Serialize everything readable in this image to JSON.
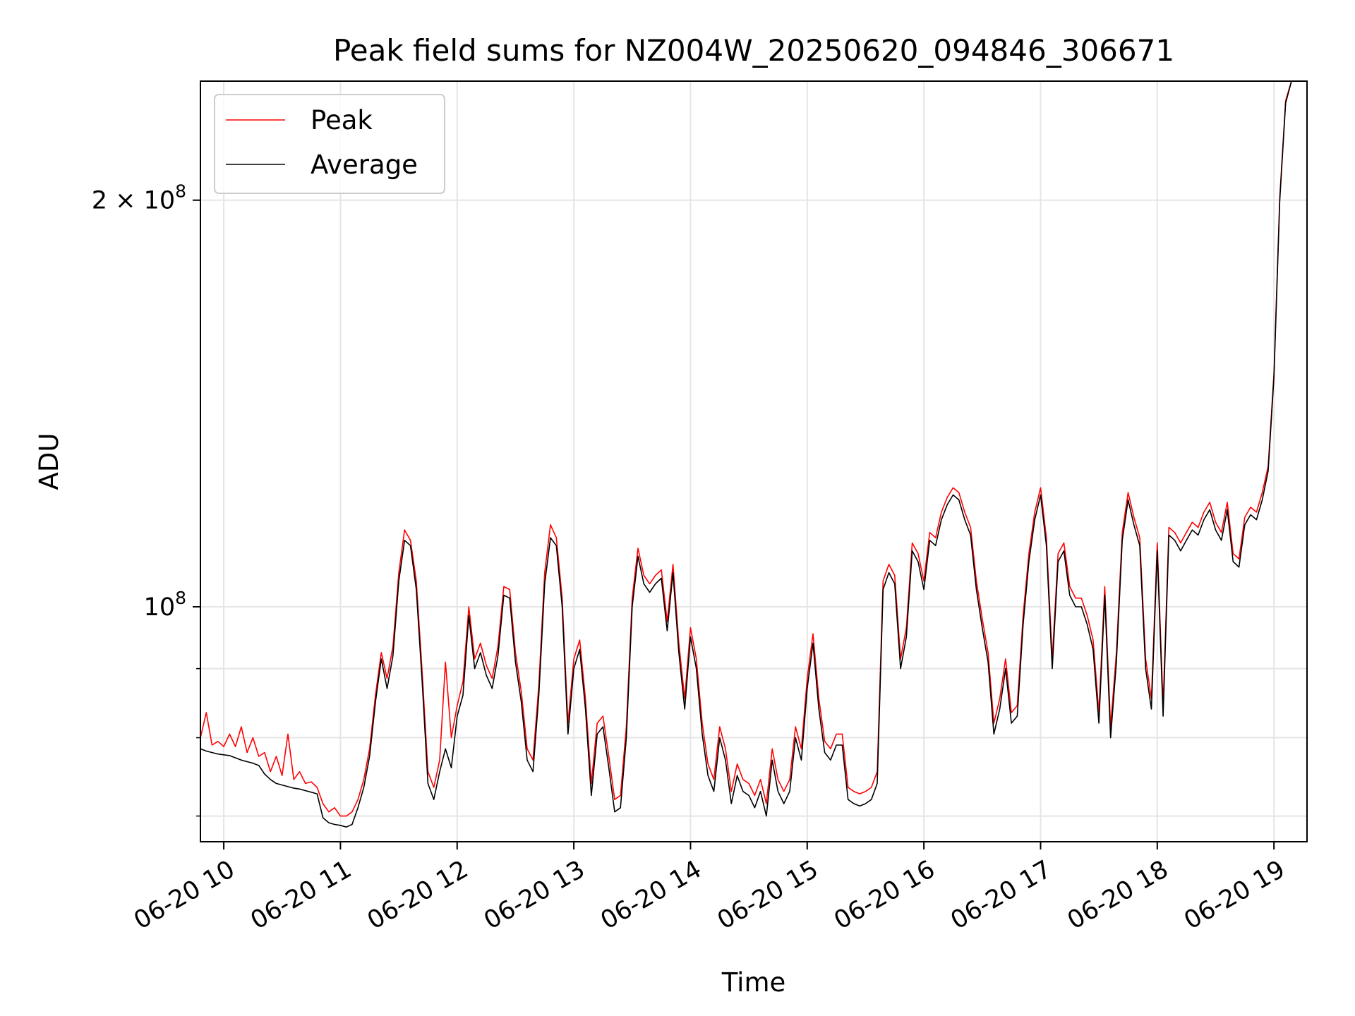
{
  "chart_data": {
    "type": "line",
    "title": "Peak field sums for NZ004W_20250620_094846_306671",
    "xlabel": "Time",
    "ylabel": "ADU",
    "yscale": "log",
    "x_unit": "hours on 2025-06-20",
    "xlim": [
      "2025-06-20 09:48",
      "2025-06-20 19:17"
    ],
    "ylim": [
      67000000,
      245000000
    ],
    "xticks": [
      {
        "value": "2025-06-20 10:00",
        "label": "06-20 10"
      },
      {
        "value": "2025-06-20 11:00",
        "label": "06-20 11"
      },
      {
        "value": "2025-06-20 12:00",
        "label": "06-20 12"
      },
      {
        "value": "2025-06-20 13:00",
        "label": "06-20 13"
      },
      {
        "value": "2025-06-20 14:00",
        "label": "06-20 14"
      },
      {
        "value": "2025-06-20 15:00",
        "label": "06-20 15"
      },
      {
        "value": "2025-06-20 16:00",
        "label": "06-20 16"
      },
      {
        "value": "2025-06-20 17:00",
        "label": "06-20 17"
      },
      {
        "value": "2025-06-20 18:00",
        "label": "06-20 18"
      },
      {
        "value": "2025-06-20 19:00",
        "label": "06-20 19"
      }
    ],
    "yticks_major": [
      {
        "value": 100000000,
        "base": "10",
        "exp": "8",
        "mantissa": ""
      },
      {
        "value": 200000000,
        "base": "10",
        "exp": "8",
        "mantissa": "2"
      }
    ],
    "yticks_minor": [
      70000000,
      80000000,
      90000000,
      300000000
    ],
    "grid": true,
    "legend": {
      "position": "top-left",
      "entries": [
        "Peak",
        "Average"
      ]
    },
    "colors": {
      "Peak": "#ff0000",
      "Average": "#000000",
      "grid": "#e5e5e5"
    },
    "series": [
      {
        "name": "Average",
        "x": [
          9.8,
          9.85,
          9.9,
          9.95,
          10.0,
          10.05,
          10.1,
          10.15,
          10.2,
          10.25,
          10.3,
          10.35,
          10.4,
          10.45,
          10.5,
          10.55,
          10.6,
          10.65,
          10.7,
          10.75,
          10.8,
          10.85,
          10.9,
          10.95,
          11.0,
          11.05,
          11.1,
          11.15,
          11.2,
          11.25,
          11.3,
          11.35,
          11.4,
          11.45,
          11.5,
          11.55,
          11.6,
          11.65,
          11.7,
          11.75,
          11.8,
          11.85,
          11.9,
          11.95,
          12.0,
          12.05,
          12.1,
          12.15,
          12.2,
          12.25,
          12.3,
          12.35,
          12.4,
          12.45,
          12.5,
          12.55,
          12.6,
          12.65,
          12.7,
          12.75,
          12.8,
          12.85,
          12.9,
          12.95,
          13.0,
          13.05,
          13.1,
          13.15,
          13.2,
          13.25,
          13.3,
          13.35,
          13.4,
          13.45,
          13.5,
          13.55,
          13.6,
          13.65,
          13.7,
          13.75,
          13.8,
          13.85,
          13.9,
          13.95,
          14.0,
          14.05,
          14.1,
          14.15,
          14.2,
          14.25,
          14.3,
          14.35,
          14.4,
          14.45,
          14.5,
          14.55,
          14.6,
          14.65,
          14.7,
          14.75,
          14.8,
          14.85,
          14.9,
          14.95,
          15.0,
          15.05,
          15.1,
          15.15,
          15.2,
          15.25,
          15.3,
          15.35,
          15.4,
          15.45,
          15.5,
          15.55,
          15.6,
          15.65,
          15.7,
          15.75,
          15.8,
          15.85,
          15.9,
          15.95,
          16.0,
          16.05,
          16.1,
          16.15,
          16.2,
          16.25,
          16.3,
          16.35,
          16.4,
          16.45,
          16.5,
          16.55,
          16.6,
          16.65,
          16.7,
          16.75,
          16.8,
          16.85,
          16.9,
          16.95,
          17.0,
          17.05,
          17.1,
          17.15,
          17.2,
          17.25,
          17.3,
          17.35,
          17.4,
          17.45,
          17.5,
          17.55,
          17.6,
          17.65,
          17.7,
          17.75,
          17.8,
          17.85,
          17.9,
          17.95,
          18.0,
          18.05,
          18.1,
          18.15,
          18.2,
          18.25,
          18.3,
          18.35,
          18.4,
          18.45,
          18.5,
          18.55,
          18.6,
          18.65,
          18.7,
          18.75,
          18.8,
          18.85,
          18.9,
          18.95,
          19.0,
          19.05,
          19.1,
          19.15,
          19.2,
          19.25
        ],
        "values": [
          78.5,
          78.2,
          78.0,
          77.8,
          77.7,
          77.6,
          77.3,
          77.0,
          76.8,
          76.6,
          76.3,
          75.2,
          74.5,
          74.0,
          73.8,
          73.6,
          73.4,
          73.3,
          73.1,
          72.9,
          72.7,
          69.8,
          69.2,
          69.0,
          68.9,
          68.7,
          69.0,
          71.0,
          73.5,
          77.5,
          85.0,
          91.5,
          87.0,
          92.0,
          104.5,
          112.0,
          111.0,
          103.0,
          88.0,
          74.0,
          72.0,
          75.5,
          78.5,
          76.0,
          83.0,
          86.0,
          98.5,
          90.0,
          92.5,
          89.0,
          87.0,
          92.0,
          102.0,
          101.5,
          91.0,
          85.0,
          77.0,
          75.5,
          86.0,
          104.0,
          112.5,
          111.0,
          100.0,
          80.5,
          90.0,
          93.0,
          84.0,
          72.5,
          80.5,
          81.5,
          76.0,
          70.5,
          71.0,
          80.0,
          100.0,
          109.0,
          104.0,
          102.5,
          104.0,
          105.0,
          96.0,
          106.0,
          92.5,
          84.0,
          95.0,
          90.0,
          80.5,
          75.0,
          73.0,
          80.0,
          77.0,
          71.5,
          75.0,
          73.0,
          72.5,
          71.0,
          73.0,
          70.0,
          77.0,
          73.0,
          71.5,
          73.0,
          80.0,
          77.0,
          87.0,
          94.0,
          84.0,
          78.0,
          77.0,
          79.0,
          79.0,
          72.0,
          71.5,
          71.2,
          71.5,
          72.0,
          74.0,
          103.0,
          106.0,
          104.0,
          90.0,
          95.0,
          110.0,
          108.0,
          103.0,
          112.0,
          111.0,
          116.0,
          119.0,
          121.0,
          120.0,
          116.0,
          113.0,
          103.0,
          96.5,
          91.0,
          80.5,
          84.0,
          90.0,
          82.0,
          83.0,
          97.0,
          108.0,
          116.0,
          121.0,
          111.0,
          90.0,
          108.0,
          110.0,
          102.0,
          100.0,
          100.0,
          97.0,
          93.0,
          82.0,
          102.0,
          80.0,
          91.0,
          112.0,
          120.0,
          115.0,
          111.0,
          90.0,
          84.0,
          110.0,
          83.0,
          113.0,
          112.0,
          110.0,
          112.0,
          114.0,
          113.0,
          116.0,
          118.0,
          114.0,
          112.0,
          118.0,
          108.0,
          107.0,
          115.0,
          117.0,
          116.0,
          120.0,
          126.0,
          148.0,
          200.0,
          236.0,
          246.0,
          248.0,
          250.0
        ]
      },
      {
        "name": "Peak",
        "x": [
          9.8,
          9.85,
          9.9,
          9.95,
          10.0,
          10.05,
          10.1,
          10.15,
          10.2,
          10.25,
          10.3,
          10.35,
          10.4,
          10.45,
          10.5,
          10.55,
          10.6,
          10.65,
          10.7,
          10.75,
          10.8,
          10.85,
          10.9,
          10.95,
          11.0,
          11.05,
          11.1,
          11.15,
          11.2,
          11.25,
          11.3,
          11.35,
          11.4,
          11.45,
          11.5,
          11.55,
          11.6,
          11.65,
          11.7,
          11.75,
          11.8,
          11.85,
          11.9,
          11.95,
          12.0,
          12.05,
          12.1,
          12.15,
          12.2,
          12.25,
          12.3,
          12.35,
          12.4,
          12.45,
          12.5,
          12.55,
          12.6,
          12.65,
          12.7,
          12.75,
          12.8,
          12.85,
          12.9,
          12.95,
          13.0,
          13.05,
          13.1,
          13.15,
          13.2,
          13.25,
          13.3,
          13.35,
          13.4,
          13.45,
          13.5,
          13.55,
          13.6,
          13.65,
          13.7,
          13.75,
          13.8,
          13.85,
          13.9,
          13.95,
          14.0,
          14.05,
          14.1,
          14.15,
          14.2,
          14.25,
          14.3,
          14.35,
          14.4,
          14.45,
          14.5,
          14.55,
          14.6,
          14.65,
          14.7,
          14.75,
          14.8,
          14.85,
          14.9,
          14.95,
          15.0,
          15.05,
          15.1,
          15.15,
          15.2,
          15.25,
          15.3,
          15.35,
          15.4,
          15.45,
          15.5,
          15.55,
          15.6,
          15.65,
          15.7,
          15.75,
          15.8,
          15.85,
          15.9,
          15.95,
          16.0,
          16.05,
          16.1,
          16.15,
          16.2,
          16.25,
          16.3,
          16.35,
          16.4,
          16.45,
          16.5,
          16.55,
          16.6,
          16.65,
          16.7,
          16.75,
          16.8,
          16.85,
          16.9,
          16.95,
          17.0,
          17.05,
          17.1,
          17.15,
          17.2,
          17.25,
          17.3,
          17.35,
          17.4,
          17.45,
          17.5,
          17.55,
          17.6,
          17.65,
          17.7,
          17.75,
          17.8,
          17.85,
          17.9,
          17.95,
          18.0,
          18.05,
          18.1,
          18.15,
          18.2,
          18.25,
          18.3,
          18.35,
          18.4,
          18.45,
          18.5,
          18.55,
          18.6,
          18.65,
          18.7,
          18.75,
          18.8,
          18.85,
          18.9,
          18.95,
          19.0,
          19.05,
          19.1,
          19.15,
          19.2,
          19.25
        ],
        "values": [
          80.0,
          83.5,
          79.0,
          79.5,
          78.8,
          80.5,
          78.8,
          81.5,
          78.0,
          80.0,
          77.5,
          78.0,
          75.5,
          77.5,
          75.0,
          80.5,
          74.5,
          75.5,
          74.0,
          74.2,
          73.5,
          71.5,
          70.5,
          71.0,
          70.0,
          70.0,
          70.5,
          72.0,
          74.5,
          78.5,
          86.0,
          92.5,
          88.5,
          93.5,
          106.0,
          114.0,
          112.0,
          104.5,
          89.5,
          75.5,
          73.5,
          77.0,
          91.0,
          80.0,
          84.5,
          88.0,
          100.0,
          91.5,
          94.0,
          90.5,
          88.5,
          93.5,
          103.5,
          103.0,
          92.5,
          86.5,
          78.5,
          77.0,
          87.5,
          106.0,
          115.0,
          112.5,
          101.5,
          82.0,
          91.5,
          94.5,
          85.5,
          74.0,
          82.0,
          83.0,
          77.5,
          72.0,
          72.5,
          81.5,
          101.5,
          110.5,
          105.5,
          104.0,
          105.5,
          106.5,
          97.5,
          107.5,
          94.0,
          85.5,
          96.5,
          91.5,
          82.0,
          76.5,
          74.5,
          81.5,
          78.5,
          73.0,
          76.5,
          74.5,
          74.0,
          72.5,
          74.5,
          71.5,
          78.5,
          74.5,
          73.0,
          74.5,
          81.5,
          78.5,
          88.5,
          95.5,
          85.5,
          79.5,
          78.5,
          80.5,
          80.5,
          73.5,
          73.0,
          72.7,
          73.0,
          73.5,
          75.5,
          104.5,
          107.5,
          105.5,
          91.5,
          96.5,
          111.5,
          109.5,
          104.5,
          113.5,
          112.5,
          117.5,
          120.5,
          122.5,
          121.5,
          117.5,
          114.5,
          104.5,
          98.0,
          92.5,
          82.0,
          85.5,
          91.5,
          83.5,
          84.5,
          98.5,
          109.5,
          117.5,
          122.5,
          112.5,
          91.5,
          109.5,
          111.5,
          103.5,
          101.5,
          101.5,
          98.5,
          94.5,
          83.5,
          103.5,
          81.5,
          92.5,
          113.5,
          121.5,
          116.5,
          112.5,
          91.5,
          85.5,
          111.5,
          84.5,
          114.5,
          113.5,
          111.5,
          113.5,
          115.5,
          114.5,
          117.5,
          119.5,
          115.5,
          113.5,
          119.5,
          109.5,
          108.5,
          116.5,
          118.5,
          117.5,
          121.5,
          127.0,
          149.0,
          201.0,
          237.0,
          247.0,
          249.0,
          251.0
        ]
      }
    ],
    "value_unit": "millions of ADU"
  }
}
